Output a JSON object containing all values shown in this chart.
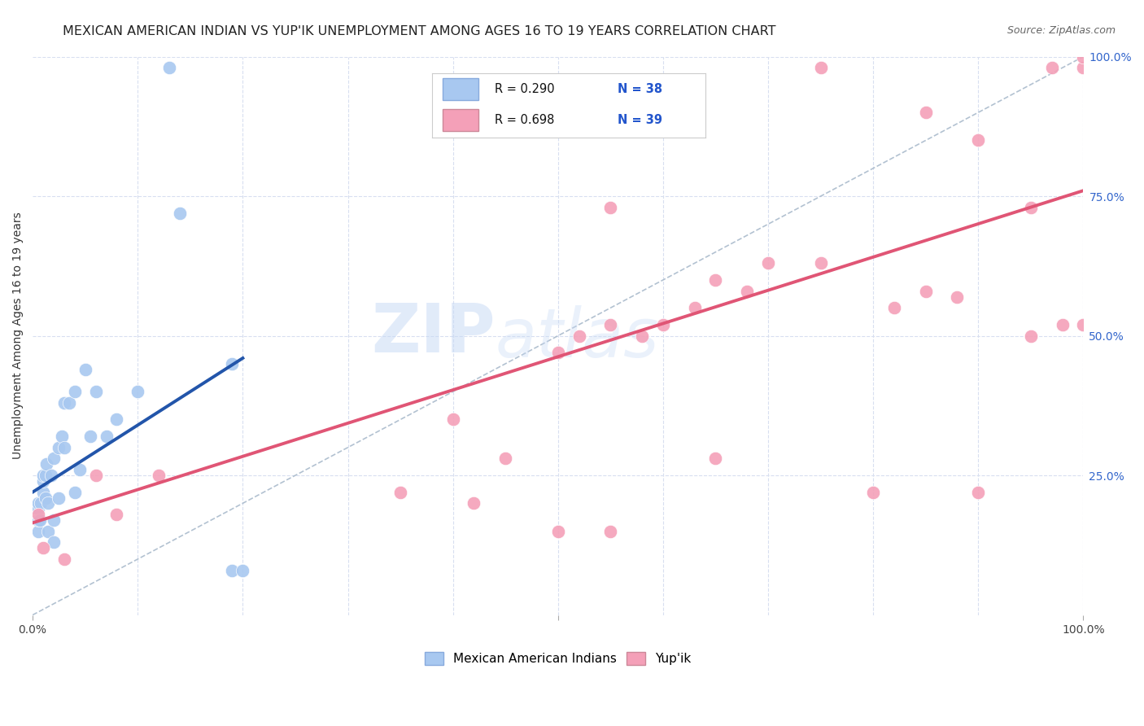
{
  "title": "MEXICAN AMERICAN INDIAN VS YUP'IK UNEMPLOYMENT AMONG AGES 16 TO 19 YEARS CORRELATION CHART",
  "source": "Source: ZipAtlas.com",
  "ylabel": "Unemployment Among Ages 16 to 19 years",
  "xlim": [
    0,
    1
  ],
  "ylim": [
    0,
    1
  ],
  "blue_color": "#a8c8f0",
  "pink_color": "#f4a0b8",
  "blue_line_color": "#2255aa",
  "pink_line_color": "#e05575",
  "diagonal_color": "#aabbcc",
  "legend_R_blue": "R = 0.290",
  "legend_N_blue": "N = 38",
  "legend_R_pink": "R = 0.698",
  "legend_N_pink": "N = 39",
  "watermark_zip": "ZIP",
  "watermark_atlas": "atlas",
  "blue_scatter_x": [
    0.005,
    0.005,
    0.005,
    0.005,
    0.007,
    0.008,
    0.01,
    0.01,
    0.01,
    0.012,
    0.012,
    0.013,
    0.015,
    0.015,
    0.018,
    0.02,
    0.02,
    0.02,
    0.025,
    0.025,
    0.028,
    0.03,
    0.03,
    0.035,
    0.04,
    0.04,
    0.045,
    0.05,
    0.055,
    0.06,
    0.07,
    0.08,
    0.1,
    0.13,
    0.14,
    0.19,
    0.19,
    0.2
  ],
  "blue_scatter_y": [
    0.15,
    0.17,
    0.19,
    0.2,
    0.17,
    0.2,
    0.22,
    0.24,
    0.25,
    0.21,
    0.25,
    0.27,
    0.15,
    0.2,
    0.25,
    0.13,
    0.17,
    0.28,
    0.21,
    0.3,
    0.32,
    0.3,
    0.38,
    0.38,
    0.22,
    0.4,
    0.26,
    0.44,
    0.32,
    0.4,
    0.32,
    0.35,
    0.4,
    0.98,
    0.72,
    0.45,
    0.08,
    0.08
  ],
  "pink_scatter_x": [
    0.005,
    0.01,
    0.03,
    0.06,
    0.08,
    0.12,
    0.35,
    0.4,
    0.42,
    0.45,
    0.5,
    0.5,
    0.52,
    0.55,
    0.55,
    0.55,
    0.58,
    0.6,
    0.63,
    0.65,
    0.65,
    0.68,
    0.7,
    0.75,
    0.75,
    0.8,
    0.82,
    0.85,
    0.85,
    0.88,
    0.9,
    0.9,
    0.95,
    0.95,
    0.97,
    0.98,
    1.0,
    1.0,
    1.0
  ],
  "pink_scatter_y": [
    0.18,
    0.12,
    0.1,
    0.25,
    0.18,
    0.25,
    0.22,
    0.35,
    0.2,
    0.28,
    0.15,
    0.47,
    0.5,
    0.52,
    0.15,
    0.73,
    0.5,
    0.52,
    0.55,
    0.28,
    0.6,
    0.58,
    0.63,
    0.63,
    0.98,
    0.22,
    0.55,
    0.58,
    0.9,
    0.57,
    0.22,
    0.85,
    0.5,
    0.73,
    0.98,
    0.52,
    0.52,
    0.98,
    1.0
  ],
  "blue_trend_x": [
    0.0,
    0.2
  ],
  "blue_trend_y": [
    0.22,
    0.46
  ],
  "pink_trend_x": [
    0.0,
    1.0
  ],
  "pink_trend_y": [
    0.165,
    0.76
  ],
  "grid_color": "#d8dff0",
  "background_color": "#ffffff",
  "title_fontsize": 11.5,
  "label_fontsize": 10,
  "tick_fontsize": 10,
  "legend_fontsize": 11,
  "right_tick_color": "#3366cc"
}
